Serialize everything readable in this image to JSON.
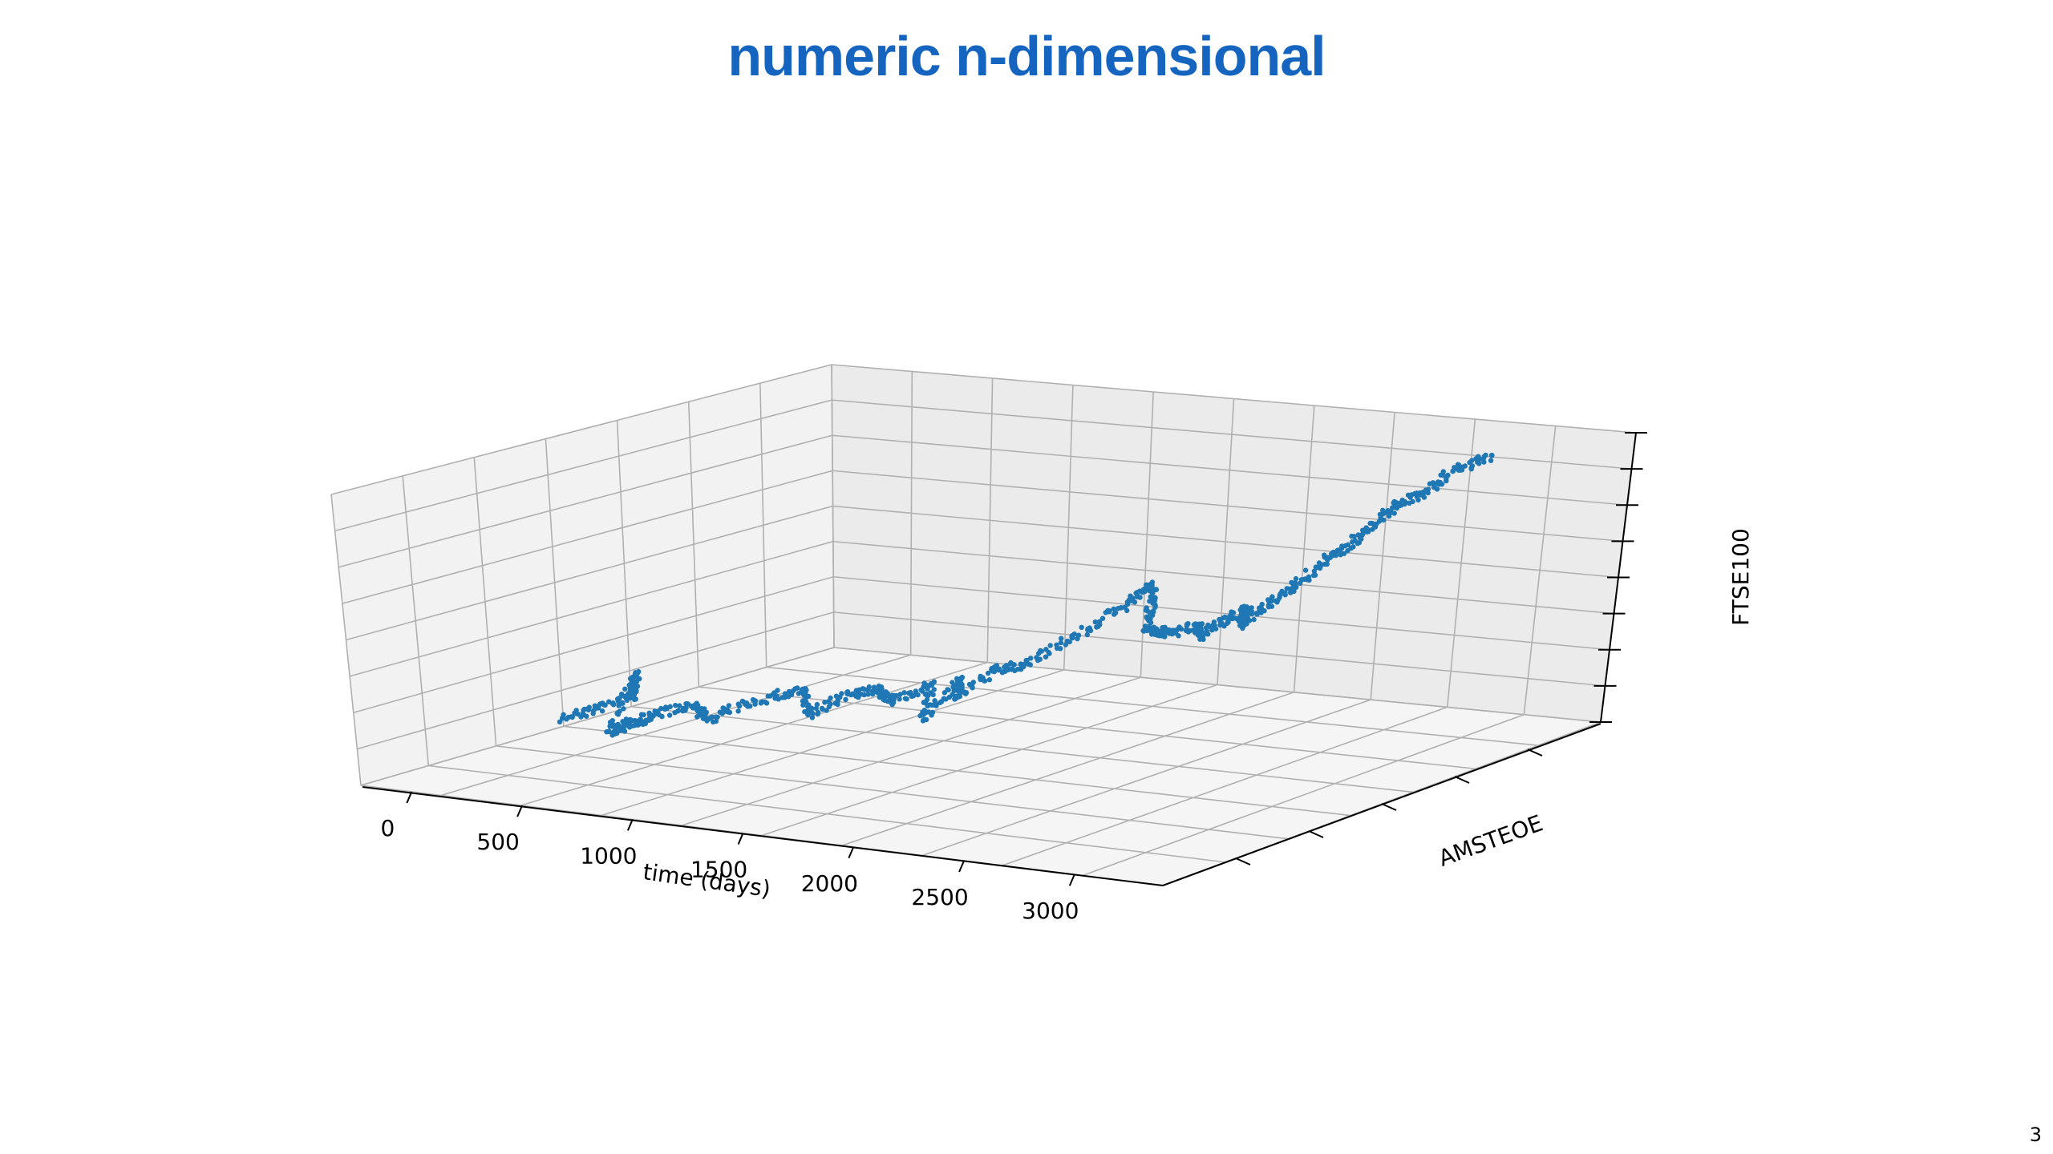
{
  "slide": {
    "title": "numeric n-dimensional",
    "page_number": "3"
  },
  "colors": {
    "title": "#1565c0",
    "series": "#1f77b4",
    "pane_back": "#ebebeb",
    "pane_side": "#f2f2f2",
    "pane_floor": "#f5f5f5",
    "grid": "#b0b0b0"
  },
  "chart_data": {
    "type": "scatter",
    "projection": "3d",
    "title": "",
    "xlabel": "time (days)",
    "ylabel": "AMSTEOE",
    "zlabel": "FTSE100",
    "x_ticks": [
      "0",
      "500",
      "1000",
      "1500",
      "2000",
      "2500",
      "3000"
    ],
    "xlim": [
      -230,
      3400
    ],
    "grid": true,
    "series": [
      {
        "name": "",
        "x": [
          0,
          100,
          200,
          250,
          300,
          350,
          450,
          550,
          650,
          800,
          900,
          1000,
          1100,
          1200,
          1300,
          1400,
          1450,
          1500,
          1550,
          1600,
          1700,
          1800,
          1900,
          2000,
          2050,
          2100,
          2200,
          2300,
          2350,
          2400,
          2450,
          2500,
          2600,
          2700,
          2800,
          2900,
          3000,
          3100,
          3200,
          3300
        ],
        "y": [
          0.32,
          0.35,
          0.38,
          0.36,
          0.28,
          0.3,
          0.3,
          0.34,
          0.33,
          0.36,
          0.42,
          0.38,
          0.42,
          0.44,
          0.42,
          0.46,
          0.42,
          0.48,
          0.44,
          0.5,
          0.52,
          0.58,
          0.64,
          0.66,
          0.64,
          0.6,
          0.6,
          0.62,
          0.6,
          0.64,
          0.66,
          0.62,
          0.64,
          0.66,
          0.68,
          0.7,
          0.72,
          0.74,
          0.76,
          0.8
        ],
        "z": [
          0.1,
          0.13,
          0.17,
          0.26,
          0.1,
          0.12,
          0.16,
          0.18,
          0.15,
          0.21,
          0.23,
          0.17,
          0.23,
          0.24,
          0.22,
          0.27,
          0.17,
          0.29,
          0.24,
          0.31,
          0.33,
          0.4,
          0.48,
          0.56,
          0.52,
          0.44,
          0.44,
          0.46,
          0.44,
          0.48,
          0.51,
          0.48,
          0.56,
          0.63,
          0.71,
          0.78,
          0.87,
          0.92,
          0.99,
          1.03
        ]
      }
    ]
  }
}
